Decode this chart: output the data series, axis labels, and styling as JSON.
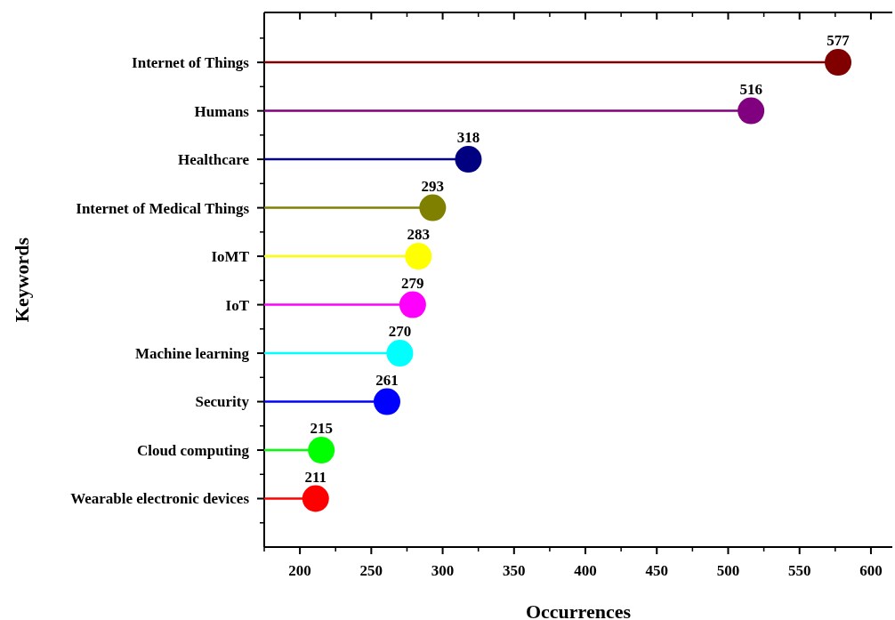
{
  "chart_data": {
    "type": "lollipop",
    "orientation": "horizontal",
    "xlabel": "Occurrences",
    "ylabel": "Keywords",
    "categories": [
      "Internet of Things",
      "Humans",
      "Healthcare",
      "Internet of Medical Things",
      "IoMT",
      "IoT",
      "Machine learning",
      "Security",
      "Cloud computing",
      "Wearable electronic devices"
    ],
    "values": [
      577,
      516,
      318,
      293,
      283,
      279,
      270,
      261,
      215,
      211
    ],
    "colors": [
      "#800000",
      "#800080",
      "#000080",
      "#808000",
      "#ffff00",
      "#ff00ff",
      "#00ffff",
      "#0000ff",
      "#00ff00",
      "#ff0000"
    ],
    "xlim": [
      175,
      615
    ],
    "xticks": [
      200,
      250,
      300,
      350,
      400,
      450,
      500,
      550,
      600
    ],
    "data_labels": true
  }
}
